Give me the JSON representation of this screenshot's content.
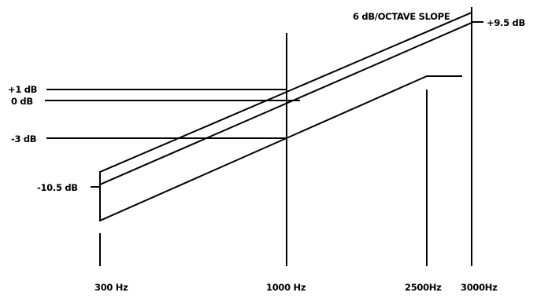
{
  "title": "6 dB/OCTAVE SLOPE",
  "level_labels": {
    "plus_one": "+1 dB",
    "zero": "0 dB",
    "minus_three": "-3 dB",
    "minus_ten_five": "-10.5 dB",
    "plus_nine_five": "+9.5 dB"
  },
  "freq_labels": {
    "f300": "300 Hz",
    "f1000": "1000 Hz",
    "f2500": "2500Hz",
    "f3000": "3000Hz"
  }
}
